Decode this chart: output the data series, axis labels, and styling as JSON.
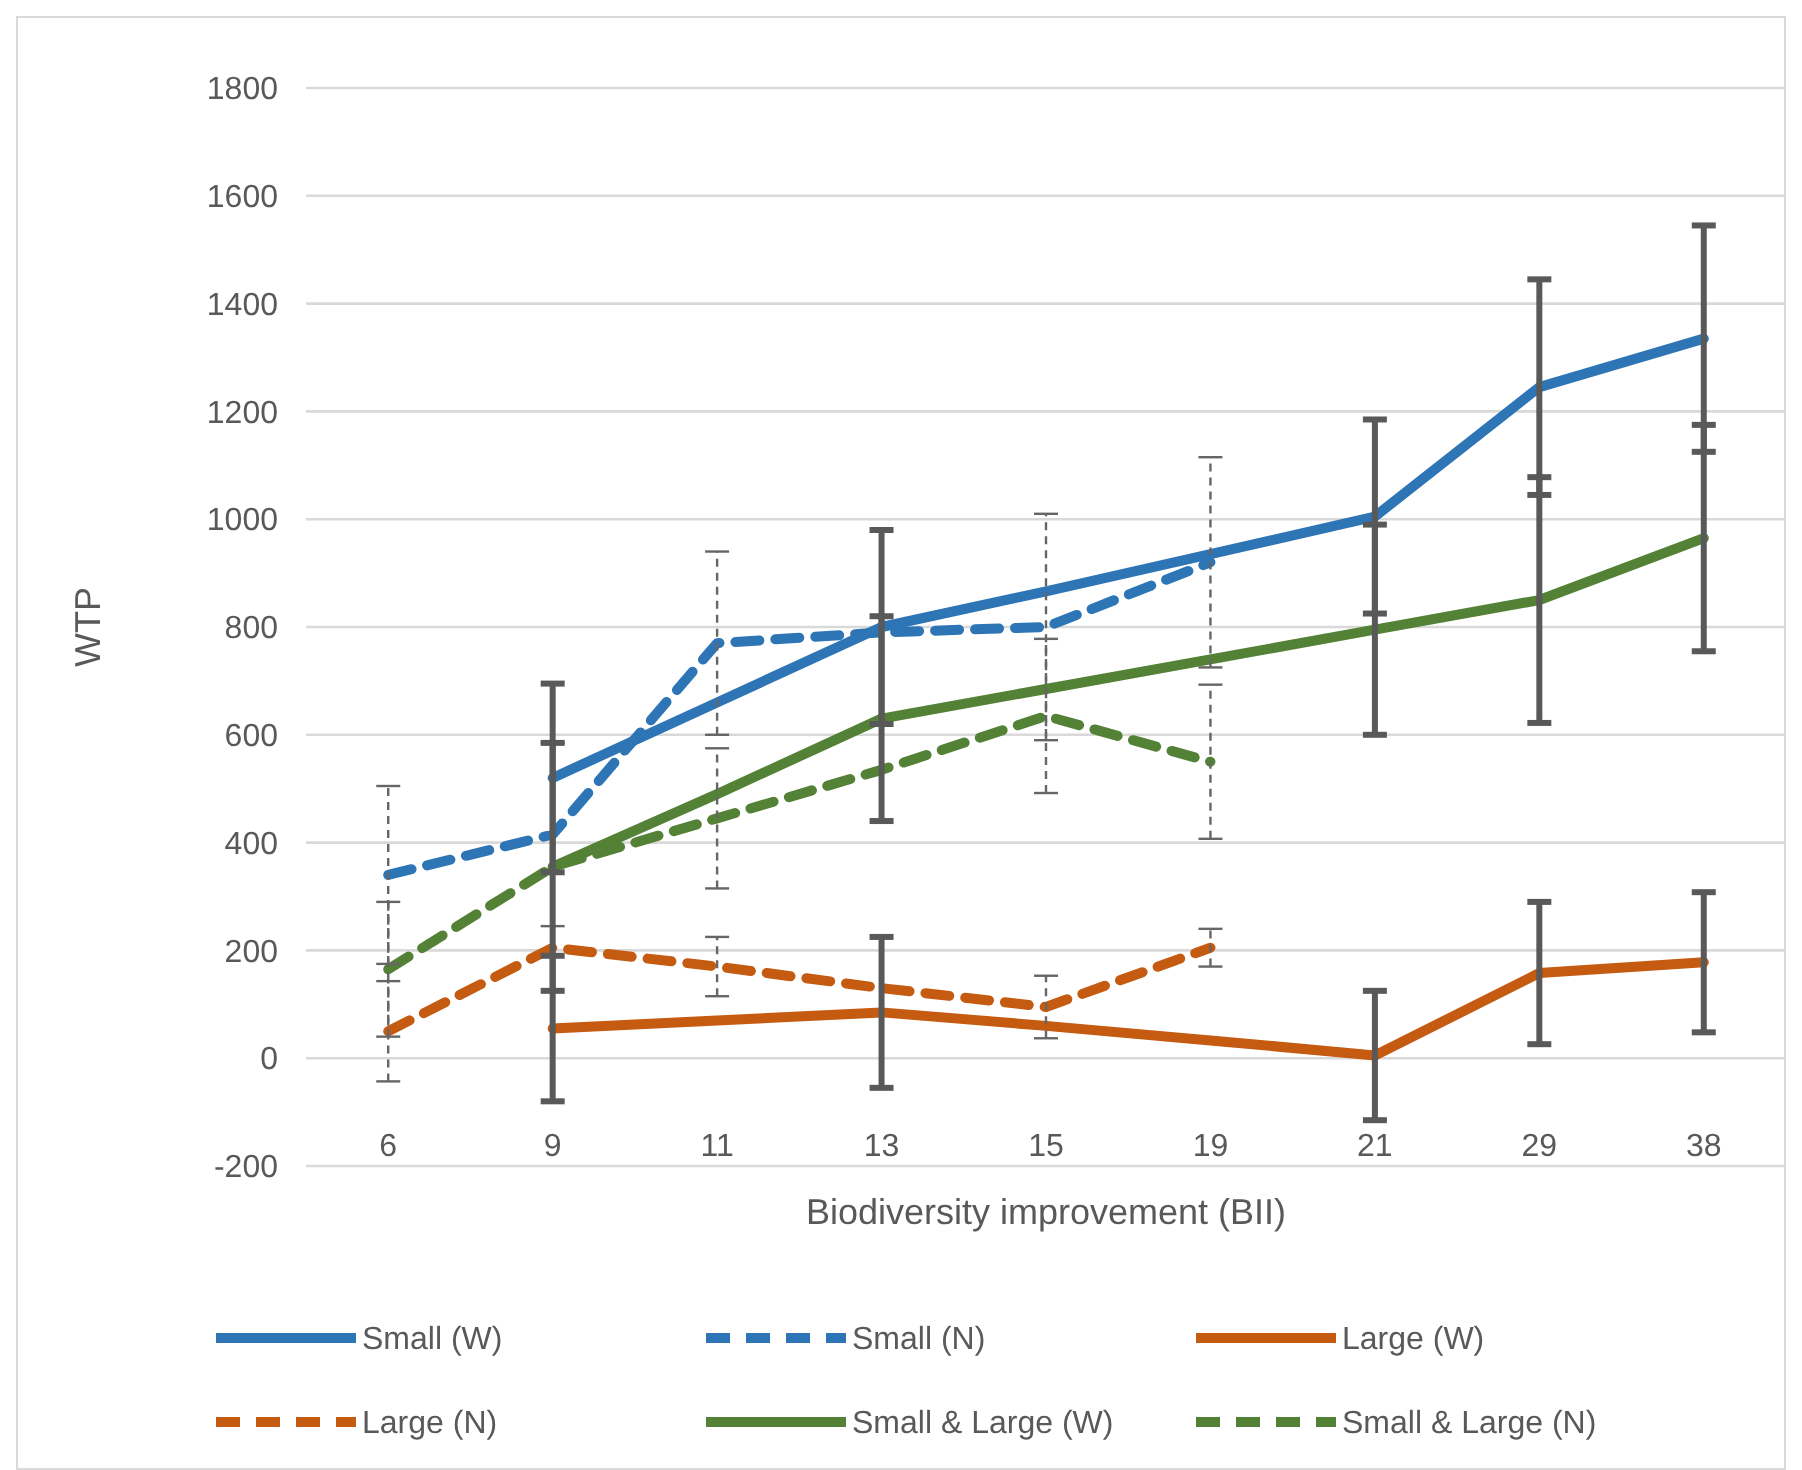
{
  "chart_data": {
    "type": "line",
    "xlabel": "Biodiversity improvement (BII)",
    "ylabel": "WTP",
    "categories": [
      "6",
      "9",
      "11",
      "13",
      "15",
      "19",
      "21",
      "29",
      "38"
    ],
    "ylim": [
      -200,
      1800
    ],
    "yticks": [
      -200,
      0,
      200,
      400,
      600,
      800,
      1000,
      1200,
      1400,
      1600,
      1800
    ],
    "grid": "y",
    "legend": "bottom",
    "marker": "none",
    "series": [
      {
        "name": "Small (W)",
        "color": "#2e75b6",
        "line_style": "solid",
        "values": [
          null,
          520,
          660,
          800,
          866,
          935,
          1005,
          1245,
          1335
        ],
        "errors": [
          null,
          175,
          null,
          180,
          null,
          null,
          180,
          200,
          210
        ]
      },
      {
        "name": "Small (N)",
        "color": "#2e75b6",
        "line_style": "dashed",
        "values": [
          340,
          415,
          770,
          790,
          800,
          920,
          null,
          null,
          null
        ],
        "errors": [
          165,
          170,
          170,
          null,
          210,
          195,
          null,
          null,
          null
        ]
      },
      {
        "name": "Large (W)",
        "color": "#c55a11",
        "line_style": "solid",
        "values": [
          null,
          55,
          70,
          85,
          60,
          33,
          5,
          158,
          178
        ],
        "errors": [
          null,
          135,
          null,
          140,
          null,
          null,
          120,
          132,
          130
        ]
      },
      {
        "name": "Large (N)",
        "color": "#c55a11",
        "line_style": "dashed",
        "values": [
          50,
          205,
          170,
          130,
          95,
          205,
          null,
          null,
          null
        ],
        "errors": [
          93,
          null,
          55,
          null,
          58,
          35,
          null,
          null,
          null
        ]
      },
      {
        "name": "Small & Large (W)",
        "color": "#538135",
        "line_style": "solid",
        "values": [
          null,
          355,
          490,
          630,
          685,
          740,
          795,
          850,
          965
        ],
        "errors": [
          null,
          230,
          null,
          190,
          null,
          null,
          195,
          228,
          210
        ]
      },
      {
        "name": "Small & Large (N)",
        "color": "#538135",
        "line_style": "dashed",
        "values": [
          165,
          355,
          445,
          535,
          635,
          550,
          null,
          null,
          null
        ],
        "errors": [
          125,
          null,
          130,
          null,
          143,
          143,
          null,
          null,
          null
        ]
      }
    ]
  }
}
